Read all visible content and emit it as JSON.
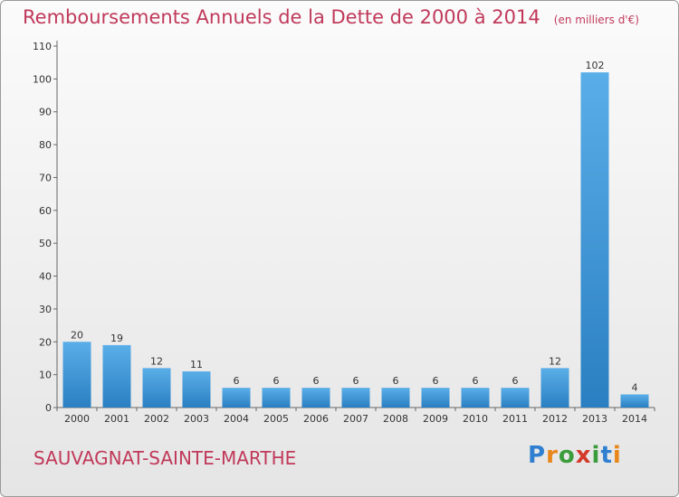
{
  "header": {
    "title": "Remboursements Annuels de la Dette de 2000 à 2014",
    "unit": "(en milliers d'€)"
  },
  "footer": {
    "commune": "SAUVAGNAT-SAINTE-MARTHE",
    "logo_text": "Proxiti"
  },
  "chart_data": {
    "type": "bar",
    "title": "Remboursements Annuels de la Dette de 2000 à 2014",
    "subtitle": "(en milliers d'€)",
    "xlabel": "",
    "ylabel": "",
    "categories": [
      "2000",
      "2001",
      "2002",
      "2003",
      "2004",
      "2005",
      "2006",
      "2007",
      "2008",
      "2009",
      "2010",
      "2011",
      "2012",
      "2013",
      "2014"
    ],
    "values": [
      20,
      19,
      12,
      11,
      6,
      6,
      6,
      6,
      6,
      6,
      6,
      6,
      12,
      102,
      4
    ],
    "ylim": [
      0,
      110
    ],
    "yticks": [
      0,
      10,
      20,
      30,
      40,
      50,
      60,
      70,
      80,
      90,
      100,
      110
    ],
    "grid": false,
    "bar_color": "#3d96db"
  }
}
